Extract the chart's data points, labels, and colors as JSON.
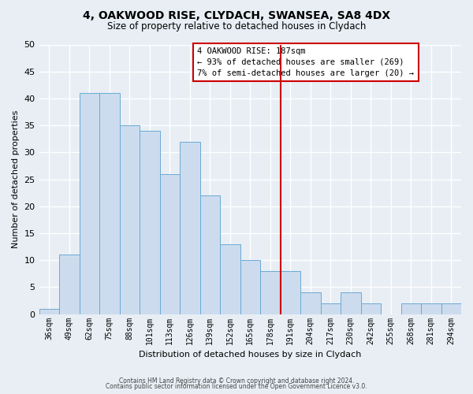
{
  "title": "4, OAKWOOD RISE, CLYDACH, SWANSEA, SA8 4DX",
  "subtitle": "Size of property relative to detached houses in Clydach",
  "xlabel": "Distribution of detached houses by size in Clydach",
  "ylabel": "Number of detached properties",
  "bin_labels": [
    "36sqm",
    "49sqm",
    "62sqm",
    "75sqm",
    "88sqm",
    "101sqm",
    "113sqm",
    "126sqm",
    "139sqm",
    "152sqm",
    "165sqm",
    "178sqm",
    "191sqm",
    "204sqm",
    "217sqm",
    "230sqm",
    "242sqm",
    "255sqm",
    "268sqm",
    "281sqm",
    "294sqm"
  ],
  "bar_heights": [
    1,
    11,
    41,
    41,
    35,
    34,
    26,
    32,
    22,
    13,
    10,
    8,
    8,
    4,
    2,
    4,
    2,
    0,
    2,
    2,
    2
  ],
  "bar_color": "#ccdcee",
  "bar_edge_color": "#6aaad4",
  "vline_index": 12,
  "vline_color": "#cc0000",
  "ylim": [
    0,
    50
  ],
  "yticks": [
    0,
    5,
    10,
    15,
    20,
    25,
    30,
    35,
    40,
    45,
    50
  ],
  "annotation_title": "4 OAKWOOD RISE: 187sqm",
  "annotation_line1": "← 93% of detached houses are smaller (269)",
  "annotation_line2": "7% of semi-detached houses are larger (20) →",
  "annotation_box_facecolor": "#ffffff",
  "annotation_border_color": "#cc0000",
  "footer_line1": "Contains HM Land Registry data © Crown copyright and database right 2024.",
  "footer_line2": "Contains public sector information licensed under the Open Government Licence v3.0.",
  "bg_color": "#e8eef4",
  "grid_color": "#ffffff",
  "ytick_fontsize": 8,
  "xtick_fontsize": 7,
  "ylabel_fontsize": 8,
  "xlabel_fontsize": 8,
  "title_fontsize": 10,
  "subtitle_fontsize": 8.5
}
